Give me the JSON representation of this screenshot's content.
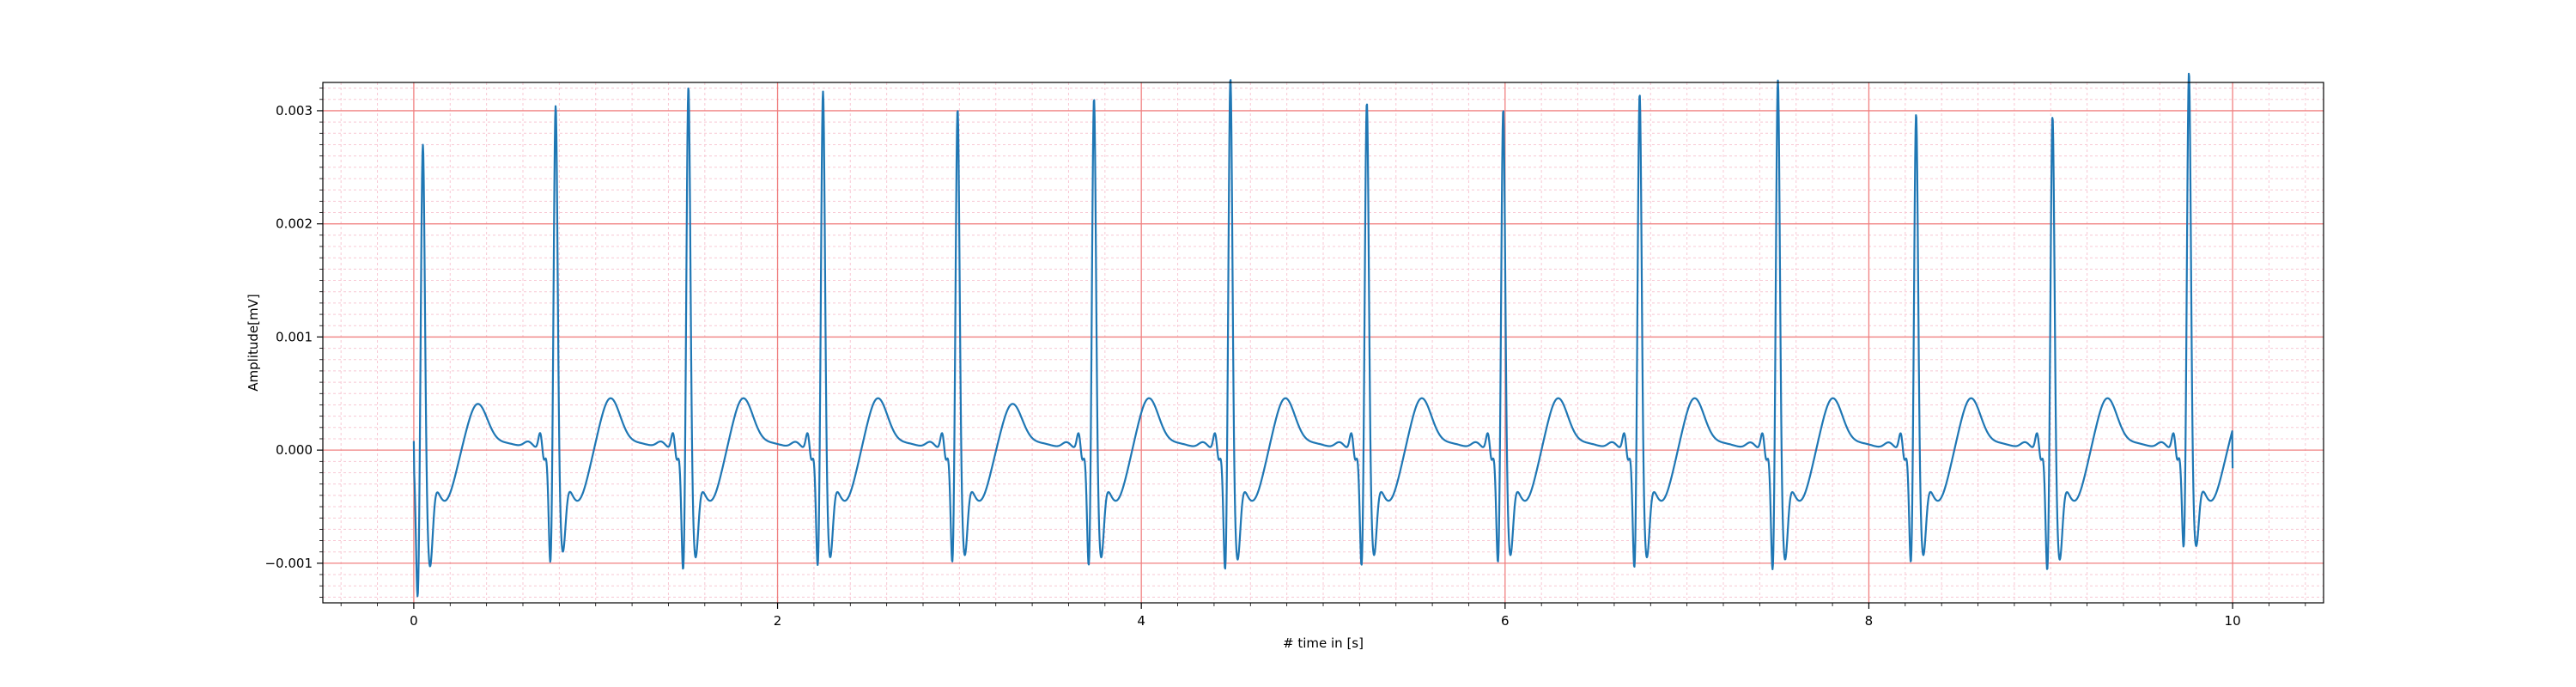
{
  "chart_data": {
    "type": "line",
    "title": "",
    "xlabel": "# time in [s]",
    "ylabel": "Amplitude[mV]",
    "xlim": [
      -0.5,
      10.5
    ],
    "ylim": [
      -0.00135,
      0.00325
    ],
    "x_ticks": [
      0,
      2,
      4,
      6,
      8,
      10
    ],
    "x_tick_labels": [
      "0",
      "2",
      "4",
      "6",
      "8",
      "10"
    ],
    "y_ticks": [
      -0.001,
      0.0,
      0.001,
      0.002,
      0.003
    ],
    "y_tick_labels": [
      "−0.001",
      "0.000",
      "0.001",
      "0.002",
      "0.003"
    ],
    "grid": {
      "major": true,
      "minor": true,
      "major_color": "#f08080",
      "minor_color": "#f8c8d4"
    },
    "legend": "none",
    "series": [
      {
        "color": "#1f77b4",
        "beats": [
          {
            "t": 0.05,
            "r": 0.00242,
            "q": -0.00115,
            "s": -0.00068,
            "t_wave": 0.0002
          },
          {
            "t": 0.78,
            "r": 0.00275,
            "q": -0.00085,
            "s": -0.00055,
            "t_wave": 0.00025
          },
          {
            "t": 1.51,
            "r": 0.00292,
            "q": -0.00092,
            "s": -0.0006,
            "t_wave": 0.00025
          },
          {
            "t": 2.25,
            "r": 0.00288,
            "q": -0.00088,
            "s": -0.0006,
            "t_wave": 0.00025
          },
          {
            "t": 2.99,
            "r": 0.00272,
            "q": -0.00085,
            "s": -0.00058,
            "t_wave": 0.0002
          },
          {
            "t": 3.74,
            "r": 0.00282,
            "q": -0.00088,
            "s": -0.0006,
            "t_wave": 0.00025
          },
          {
            "t": 4.49,
            "r": 0.003,
            "q": -0.00092,
            "s": -0.00062,
            "t_wave": 0.00025
          },
          {
            "t": 5.24,
            "r": 0.00278,
            "q": -0.00088,
            "s": -0.00058,
            "t_wave": 0.00025
          },
          {
            "t": 5.99,
            "r": 0.00272,
            "q": -0.00085,
            "s": -0.00058,
            "t_wave": 0.00025
          },
          {
            "t": 6.74,
            "r": 0.00286,
            "q": -0.0009,
            "s": -0.0006,
            "t_wave": 0.00025
          },
          {
            "t": 7.5,
            "r": 0.00298,
            "q": -0.00092,
            "s": -0.00062,
            "t_wave": 0.00025
          },
          {
            "t": 8.26,
            "r": 0.00268,
            "q": -0.00085,
            "s": -0.00058,
            "t_wave": 0.00025
          },
          {
            "t": 9.01,
            "r": 0.00266,
            "q": -0.00092,
            "s": -0.00062,
            "t_wave": 0.00025
          },
          {
            "t": 9.76,
            "r": 0.00304,
            "q": -0.00072,
            "s": -0.0005,
            "t_wave": 0.0002
          }
        ],
        "x_start": 0.0,
        "y_start": 8e-05,
        "x_end": 10.0,
        "y_end": -0.00016
      }
    ]
  }
}
